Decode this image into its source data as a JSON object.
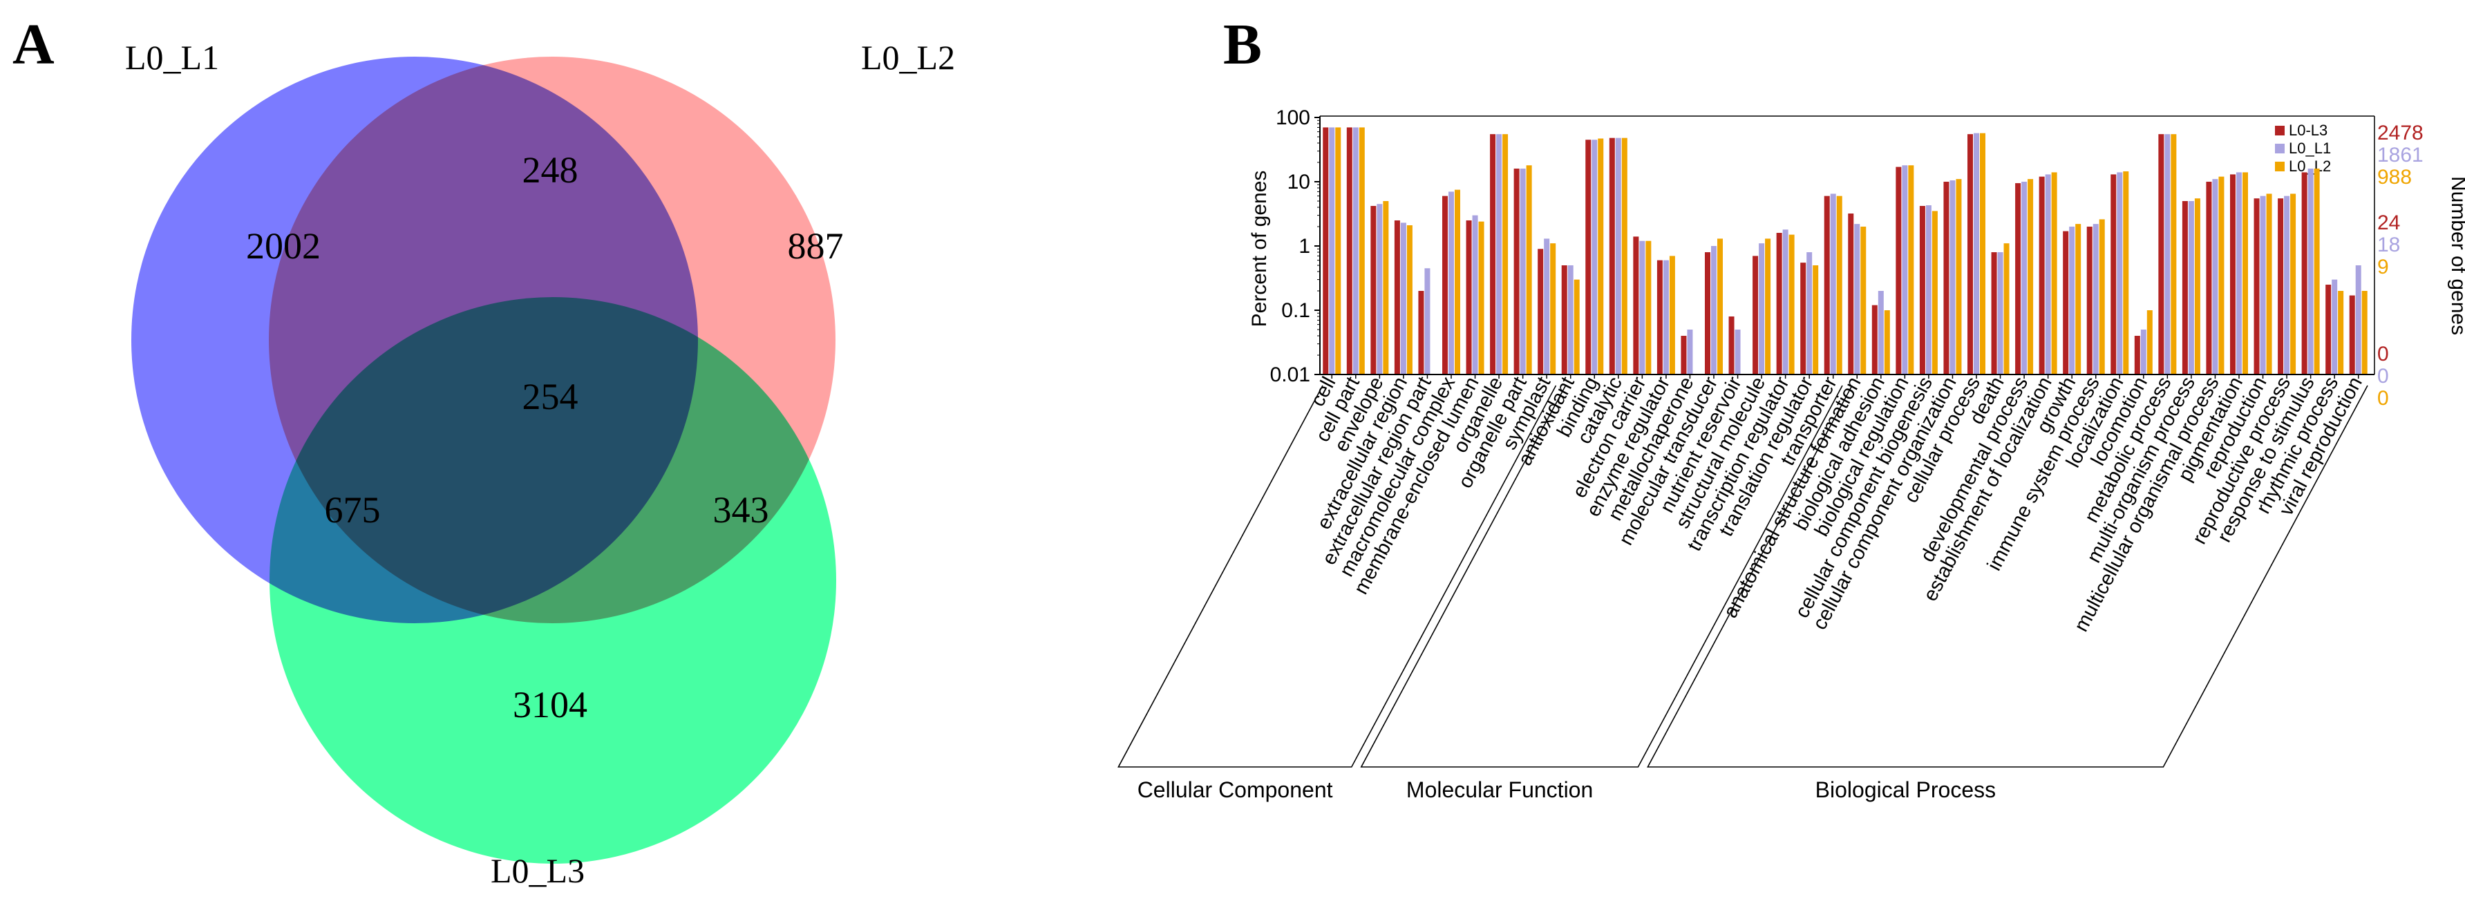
{
  "panel_a": {
    "label": "A",
    "chart_data": {
      "type": "venn",
      "sets": [
        "L0_L1",
        "L0_L2",
        "L0_L3"
      ],
      "set_colors": [
        "#7b7bff",
        "#ff7f7f",
        "#00ff7f"
      ],
      "regions": {
        "L1_only": 2002,
        "L2_only": 887,
        "L3_only": 3104,
        "L1_L2": 248,
        "L1_L3": 675,
        "L2_L3": 343,
        "L1_L2_L3": 254
      }
    }
  },
  "panel_b": {
    "label": "B",
    "chart_data": {
      "type": "bar",
      "yscale": "log",
      "ylabel": "Percent of genes",
      "ylabel_right": "Number of genes",
      "y_ticks": [
        "100",
        "10",
        "1",
        "0.1",
        "0.01"
      ],
      "ylim": [
        0.01,
        100
      ],
      "right_axis": {
        "top": [
          "2478",
          "1861",
          "988"
        ],
        "mid": [
          "24",
          "18",
          "9"
        ],
        "bottom": [
          "0",
          "0",
          "0"
        ]
      },
      "series": [
        {
          "name": "L0-L3",
          "color": "#b22222"
        },
        {
          "name": "L0_L1",
          "color": "#a9a3e0"
        },
        {
          "name": "L0_L2",
          "color": "#f0a500"
        }
      ],
      "categories": [
        {
          "name": "cell",
          "v": [
            70,
            70,
            70
          ]
        },
        {
          "name": "cell part",
          "v": [
            70,
            70,
            70
          ]
        },
        {
          "name": "envelope",
          "v": [
            4.2,
            4.5,
            5.0
          ]
        },
        {
          "name": "extracellular region",
          "v": [
            2.5,
            2.3,
            2.1
          ]
        },
        {
          "name": "extracellular region part",
          "v": [
            0.2,
            0.45,
            0
          ]
        },
        {
          "name": "macromolecular complex",
          "v": [
            6.0,
            7.0,
            7.5
          ]
        },
        {
          "name": "membrane-enclosed lumen",
          "v": [
            2.5,
            3.0,
            2.4
          ]
        },
        {
          "name": "organelle",
          "v": [
            55,
            55,
            55
          ]
        },
        {
          "name": "organelle part",
          "v": [
            16,
            16,
            18
          ]
        },
        {
          "name": "symplast",
          "v": [
            0.9,
            1.3,
            1.1
          ]
        },
        {
          "name": "antioxidant",
          "v": [
            0.5,
            0.5,
            0.3
          ]
        },
        {
          "name": "binding",
          "v": [
            45,
            45,
            47
          ]
        },
        {
          "name": "catalytic",
          "v": [
            48,
            48,
            48
          ]
        },
        {
          "name": "electron carrier",
          "v": [
            1.4,
            1.2,
            1.2
          ]
        },
        {
          "name": "enzyme regulator",
          "v": [
            0.6,
            0.6,
            0.7
          ]
        },
        {
          "name": "metallochaperone",
          "v": [
            0.04,
            0.05,
            0
          ]
        },
        {
          "name": "molecular transducer",
          "v": [
            0.8,
            1.0,
            1.3
          ]
        },
        {
          "name": "nutrient reservoir",
          "v": [
            0.08,
            0.05,
            0
          ]
        },
        {
          "name": "structural molecule",
          "v": [
            0.7,
            1.1,
            1.3
          ]
        },
        {
          "name": "transcription regulator",
          "v": [
            1.6,
            1.8,
            1.5
          ]
        },
        {
          "name": "translation regulator",
          "v": [
            0.55,
            0.8,
            0.5
          ]
        },
        {
          "name": "transporter",
          "v": [
            6.0,
            6.5,
            6.0
          ]
        },
        {
          "name": "anatomical structure formation",
          "v": [
            3.2,
            2.2,
            2.0
          ]
        },
        {
          "name": "biological adhesion",
          "v": [
            0.12,
            0.2,
            0.1
          ]
        },
        {
          "name": "biological regulation",
          "v": [
            17,
            18,
            18
          ]
        },
        {
          "name": "cellular component biogenesis",
          "v": [
            4.2,
            4.3,
            3.5
          ]
        },
        {
          "name": "cellular component organization",
          "v": [
            10,
            10.5,
            11
          ]
        },
        {
          "name": "cellular process",
          "v": [
            55,
            57,
            57
          ]
        },
        {
          "name": "death",
          "v": [
            0.8,
            0.8,
            1.1
          ]
        },
        {
          "name": "developmental process",
          "v": [
            9.5,
            10,
            11
          ]
        },
        {
          "name": "establishment of localization",
          "v": [
            12,
            13,
            14
          ]
        },
        {
          "name": "growth",
          "v": [
            1.7,
            2.0,
            2.2
          ]
        },
        {
          "name": "immune system process",
          "v": [
            2.0,
            2.2,
            2.6
          ]
        },
        {
          "name": "localization",
          "v": [
            13,
            14,
            14.5
          ]
        },
        {
          "name": "locomotion",
          "v": [
            0.04,
            0.05,
            0.1
          ]
        },
        {
          "name": "metabolic process",
          "v": [
            55,
            55,
            55
          ]
        },
        {
          "name": "multi-organism process",
          "v": [
            5.0,
            5.0,
            5.5
          ]
        },
        {
          "name": "multicellular organismal process",
          "v": [
            10,
            11,
            12
          ]
        },
        {
          "name": "pigmentation",
          "v": [
            13,
            14,
            14
          ]
        },
        {
          "name": "reproduction",
          "v": [
            5.5,
            6.0,
            6.5
          ]
        },
        {
          "name": "reproductive process",
          "v": [
            5.5,
            6.0,
            6.5
          ]
        },
        {
          "name": "response to stimulus",
          "v": [
            14,
            16,
            16
          ]
        },
        {
          "name": "rhythmic process",
          "v": [
            0.25,
            0.3,
            0.2
          ]
        },
        {
          "name": "viral reproduction",
          "v": [
            0.17,
            0.5,
            0.2
          ]
        }
      ],
      "groups": [
        {
          "name": "Cellular Component",
          "start": 0,
          "end": 10
        },
        {
          "name": "Molecular Function",
          "start": 10,
          "end": 22
        },
        {
          "name": "Biological Process",
          "start": 22,
          "end": 44
        }
      ]
    }
  }
}
